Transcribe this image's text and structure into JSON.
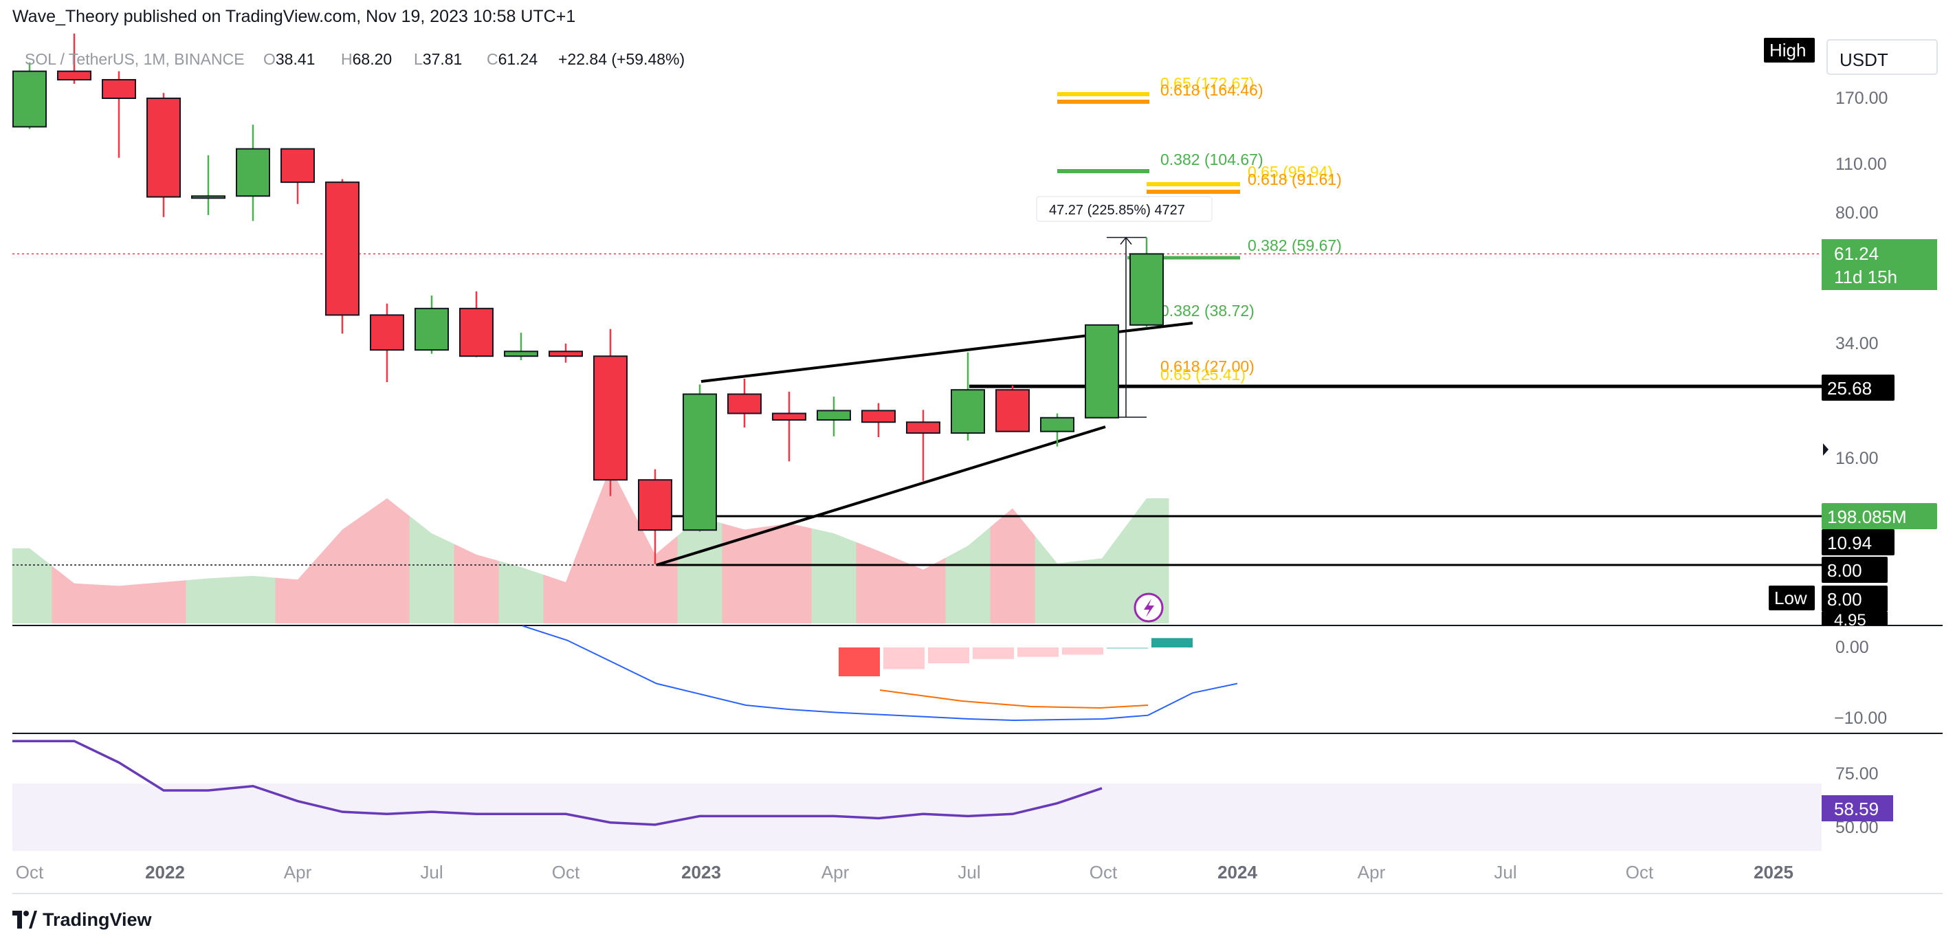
{
  "header": {
    "publisher": "Wave_Theory published on TradingView.com, Nov 19, 2023 10:58 UTC+1"
  },
  "legend": {
    "symbol": "SOL / TetherUS, 1M, BINANCE",
    "o_label": "O",
    "o_value": "38.41",
    "h_label": "H",
    "h_value": "68.20",
    "l_label": "L",
    "l_value": "37.81",
    "c_label": "C",
    "c_value": "61.24",
    "change": "+22.84 (+59.48%)"
  },
  "footer": {
    "brand": "TradingView"
  },
  "colors": {
    "up": "#4caf50",
    "down": "#f23645",
    "fib_orange": "#ff9800",
    "fib_yellow": "#ffd700",
    "fib_green": "#4caf50",
    "rsi": "#673ab7",
    "macd": "#2962ff",
    "signal": "#ff6d00"
  },
  "chart_data": {
    "type": "candlestick",
    "price_scale": "log",
    "currency": "USDT",
    "months": [
      "2021-10",
      "2021-11",
      "2021-12",
      "2022-01",
      "2022-02",
      "2022-03",
      "2022-04",
      "2022-05",
      "2022-06",
      "2022-07",
      "2022-08",
      "2022-09",
      "2022-10",
      "2022-11",
      "2022-12",
      "2023-01",
      "2023-02",
      "2023-03",
      "2023-04",
      "2023-05",
      "2023-06",
      "2023-07",
      "2023-08",
      "2023-09",
      "2023-10",
      "2023-11"
    ],
    "open": [
      141.0,
      203.0,
      192.0,
      170.0,
      89.0,
      89.5,
      122.0,
      98.0,
      41.0,
      32.6,
      42.8,
      31.3,
      32.3,
      31.3,
      13.9,
      10.0,
      24.4,
      21.5,
      20.6,
      21.9,
      20.3,
      18.9,
      25.1,
      19.1,
      20.9,
      38.41
    ],
    "high": [
      215.0,
      260.0,
      203.0,
      176.0,
      117.0,
      143.0,
      122.0,
      100.0,
      44.2,
      46.6,
      47.9,
      36.5,
      34.0,
      37.4,
      14.9,
      26.0,
      27.0,
      24.8,
      24.0,
      23.0,
      22.0,
      32.1,
      25.8,
      21.5,
      38.0,
      68.2
    ],
    "low": [
      139.0,
      187.0,
      115.0,
      78.0,
      79.0,
      76.0,
      85.0,
      36.3,
      26.4,
      31.8,
      31.1,
      30.5,
      30.0,
      12.5,
      8.0,
      9.9,
      19.6,
      15.7,
      18.5,
      18.4,
      13.8,
      18.0,
      19.2,
      17.3,
      20.8,
      37.81
    ],
    "close": [
      203.0,
      192.0,
      170.0,
      89.0,
      89.5,
      122.0,
      98.0,
      41.0,
      32.6,
      42.8,
      31.3,
      32.3,
      31.3,
      13.9,
      10.0,
      24.4,
      21.5,
      20.6,
      21.9,
      20.3,
      18.9,
      25.1,
      19.1,
      20.9,
      38.41,
      61.24
    ],
    "volume_rel": [
      0.6,
      0.32,
      0.3,
      0.33,
      0.36,
      0.38,
      0.35,
      0.75,
      1.0,
      0.72,
      0.55,
      0.45,
      0.33,
      1.25,
      0.55,
      0.85,
      0.75,
      0.8,
      0.72,
      0.58,
      0.43,
      0.62,
      0.92,
      0.48,
      0.52,
      1.0
    ],
    "price_axis": {
      "ticks": [
        "170.00",
        "110.00",
        "80.00",
        "34.00",
        "16.00"
      ]
    },
    "price_labels": [
      {
        "text": "USDT",
        "kind": "unit"
      },
      {
        "text": "High",
        "kind": "tag"
      },
      {
        "text": "Low",
        "kind": "tag"
      },
      {
        "text": "61.24",
        "sub": "11d 15h",
        "kind": "last"
      },
      {
        "text": "25.68",
        "kind": "line"
      },
      {
        "text": "198.085M",
        "kind": "volume"
      },
      {
        "text": "10.94",
        "kind": "line"
      },
      {
        "text": "8.00",
        "kind": "line"
      },
      {
        "text": "8.00",
        "kind": "low"
      },
      {
        "text": "4.95",
        "kind": "partial"
      }
    ],
    "fib_levels": [
      {
        "label": "0.65 (172.67)",
        "color": "#ffd700"
      },
      {
        "label": "0.618 (164.46)",
        "color": "#ff9800"
      },
      {
        "label": "0.382 (104.67)",
        "color": "#4caf50"
      },
      {
        "label": "0.65 (95.94)",
        "color": "#ffd700"
      },
      {
        "label": "0.618 (91.61)",
        "color": "#ff9800"
      },
      {
        "label": "0.382 (59.67)",
        "color": "#4caf50"
      },
      {
        "label": "0.382 (38.72)",
        "color": "#4caf50"
      },
      {
        "label": "0.618 (27.00)",
        "color": "#ff9800"
      },
      {
        "label": "0.65 (25.41)",
        "color": "#ffd700"
      }
    ],
    "measure": {
      "label": "47.27 (225.85%) 4727"
    },
    "macd": {
      "ticks": [
        "0.00",
        "−10.00"
      ],
      "line_values": [
        3.0,
        1.0,
        -2.0,
        -5.0,
        -6.5,
        -8.0,
        -8.6,
        -9.0,
        -9.3,
        -9.6,
        -9.9,
        -10.1,
        -10.0,
        -9.9,
        -9.4,
        -6.3,
        -5.0
      ],
      "hist_values": [
        -4.0,
        -3.0,
        -2.2,
        -1.6,
        -1.3,
        -1.0,
        0.0,
        1.3
      ]
    },
    "rsi": {
      "ticks": [
        "75.00",
        "50.00"
      ],
      "current": "58.59",
      "values": [
        90,
        90,
        80,
        67,
        67,
        69,
        62,
        57,
        56,
        57,
        56,
        56,
        56,
        52,
        51,
        55,
        55,
        55,
        55,
        54,
        56,
        55,
        56,
        61,
        68
      ]
    },
    "time_axis": [
      "Oct",
      "2022",
      "Apr",
      "Jul",
      "Oct",
      "2023",
      "Apr",
      "Jul",
      "Oct",
      "2024",
      "Apr",
      "Jul",
      "Oct",
      "2025"
    ]
  }
}
